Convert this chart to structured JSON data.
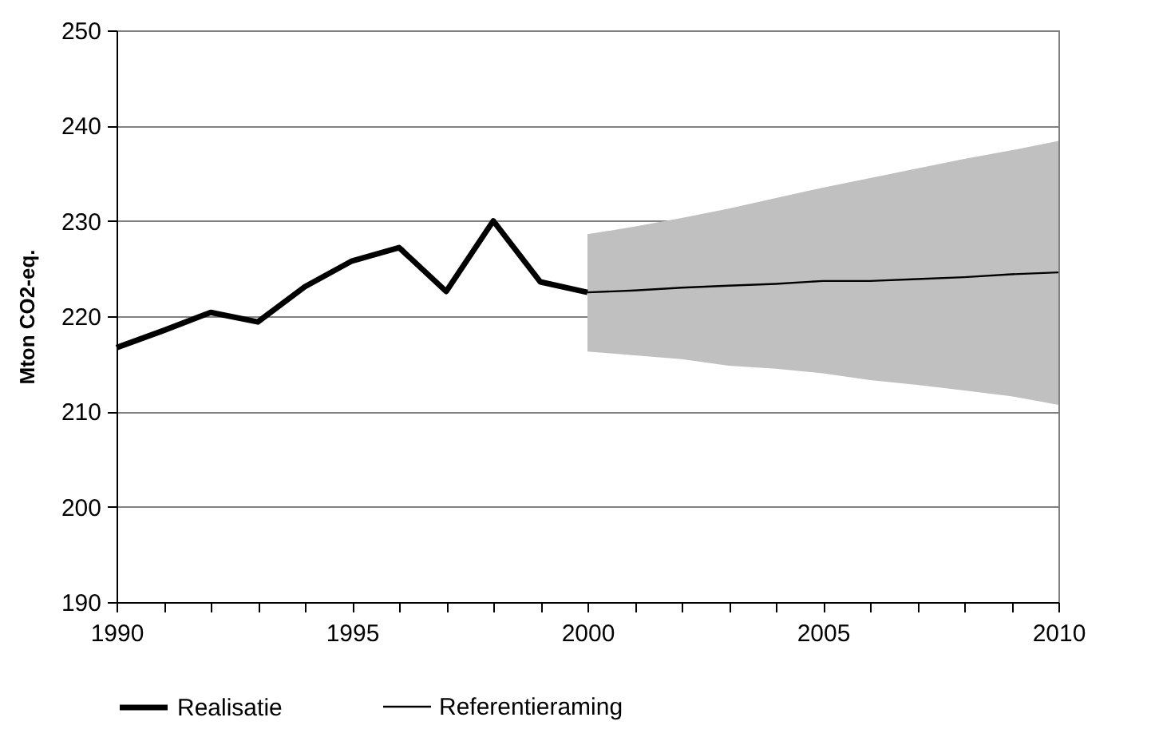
{
  "chart_data": {
    "type": "line",
    "ylabel": "Mton CO2-eq.",
    "series": [
      {
        "name": "Realisatie",
        "color": "#000000",
        "x": [
          1990,
          1991,
          1992,
          1993,
          1994,
          1995,
          1996,
          1997,
          1998,
          1999,
          2000
        ],
        "values": [
          216.7,
          218.5,
          220.4,
          219.4,
          223.1,
          225.8,
          227.2,
          222.6,
          230.0,
          223.6,
          222.5
        ]
      },
      {
        "name": "Referentieraming",
        "color": "#000000",
        "x": [
          2000,
          2001,
          2002,
          2003,
          2004,
          2005,
          2006,
          2007,
          2008,
          2009,
          2010
        ],
        "values": [
          222.5,
          222.7,
          223.0,
          223.2,
          223.4,
          223.7,
          223.7,
          223.9,
          224.1,
          224.4,
          224.6
        ],
        "lower": [
          216.3,
          215.9,
          215.5,
          214.8,
          214.5,
          214.0,
          213.3,
          212.8,
          212.2,
          211.6,
          210.7
        ],
        "upper": [
          228.6,
          229.4,
          230.3,
          231.3,
          232.4,
          233.5,
          234.5,
          235.5,
          236.5,
          237.4,
          238.4
        ]
      }
    ],
    "xlim": [
      1990,
      2010
    ],
    "xticks": [
      1990,
      {
        "value": 1991,
        "label": null
      },
      {
        "value": 1992,
        "label": null
      },
      {
        "value": 1993,
        "label": null
      },
      {
        "value": 1994,
        "label": null
      },
      1995,
      {
        "value": 1996,
        "label": null
      },
      {
        "value": 1997,
        "label": null
      },
      {
        "value": 1998,
        "label": null
      },
      {
        "value": 1999,
        "label": null
      },
      2000,
      {
        "value": 2001,
        "label": null
      },
      {
        "value": 2002,
        "label": null
      },
      {
        "value": 2003,
        "label": null
      },
      {
        "value": 2004,
        "label": null
      },
      2005,
      {
        "value": 2006,
        "label": null
      },
      {
        "value": 2007,
        "label": null
      },
      {
        "value": 2008,
        "label": null
      },
      {
        "value": 2009,
        "label": null
      },
      2010
    ],
    "ylim": [
      190,
      250
    ],
    "yticks": [
      190,
      200,
      210,
      220,
      230,
      240,
      250
    ],
    "grid": "y",
    "legend": "bottom",
    "marker": "none",
    "line_style": "solid"
  }
}
